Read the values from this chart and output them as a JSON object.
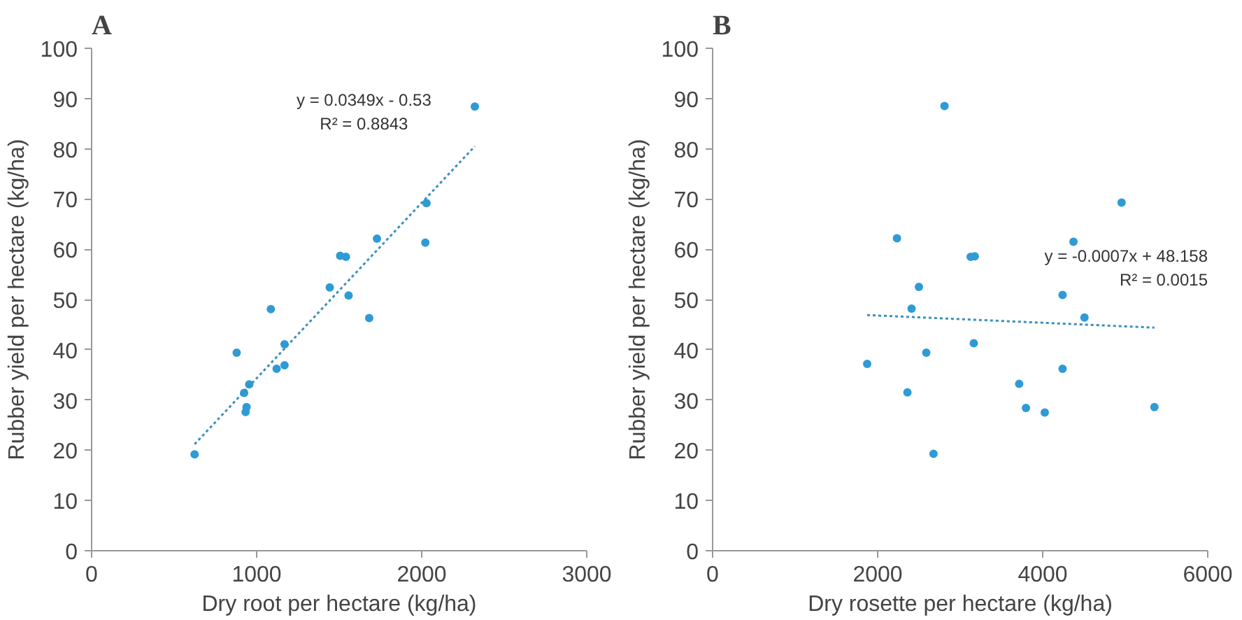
{
  "chart_data": [
    {
      "type": "scatter",
      "title": "A",
      "xlabel": "Dry root per hectare (kg/ha)",
      "ylabel": "Rubber yield per hectare (kg/ha)",
      "xlim": [
        0,
        3000
      ],
      "xticks": [
        0,
        1000,
        2000,
        3000
      ],
      "ylim": [
        0,
        100
      ],
      "yticks": [
        0,
        10,
        20,
        30,
        40,
        50,
        60,
        70,
        80,
        90,
        100
      ],
      "grid": false,
      "series": [
        {
          "type": "scatter",
          "marker": "circle",
          "color": "#2e9bd6",
          "x": [
            624,
            879,
            924,
            939,
            933,
            955,
            1086,
            1121,
            1169,
            1169,
            1443,
            1506,
            1541,
            1557,
            1682,
            1729,
            2022,
            2029,
            2322
          ],
          "values": [
            19.2,
            39.4,
            31.4,
            28.6,
            27.6,
            33.1,
            48.1,
            36.2,
            36.9,
            41.1,
            52.4,
            58.7,
            58.5,
            50.8,
            46.3,
            62.1,
            61.3,
            69.2,
            88.4
          ]
        },
        {
          "type": "line",
          "line_style": "dotted",
          "color": "#3a8fbf",
          "x": [
            624,
            2322
          ],
          "values": [
            21.2,
            80.5
          ]
        }
      ],
      "annotations": [
        "y = 0.0349x - 0.53\nR² = 0.8843"
      ]
    },
    {
      "type": "scatter",
      "title": "B",
      "xlabel": "Dry rosette per hectare (kg/ha)",
      "ylabel": "Rubber yield per hectare (kg/ha)",
      "xlim": [
        0,
        6000
      ],
      "xticks": [
        0,
        2000,
        4000,
        6000
      ],
      "ylim": [
        0,
        100
      ],
      "yticks": [
        0,
        10,
        20,
        30,
        40,
        50,
        60,
        70,
        80,
        90,
        100
      ],
      "grid": false,
      "series": [
        {
          "type": "scatter",
          "marker": "circle",
          "color": "#2e9bd6",
          "x": [
            1873,
            2234,
            2361,
            2411,
            2500,
            2589,
            2677,
            2810,
            3127,
            3177,
            3165,
            3715,
            3797,
            4025,
            4241,
            4241,
            4373,
            4506,
            4956,
            5354
          ],
          "values": [
            37.2,
            62.2,
            31.5,
            48.2,
            52.5,
            39.4,
            19.3,
            88.5,
            58.5,
            58.6,
            41.3,
            33.2,
            28.4,
            27.5,
            50.9,
            36.2,
            61.5,
            46.4,
            69.3,
            28.6
          ]
        },
        {
          "type": "line",
          "line_style": "dotted",
          "color": "#3a8fbf",
          "x": [
            1873,
            5354
          ],
          "values": [
            46.9,
            44.4
          ]
        }
      ],
      "annotations": [
        "y = -0.0007x + 48.158\nR² = 0.0015"
      ]
    }
  ]
}
